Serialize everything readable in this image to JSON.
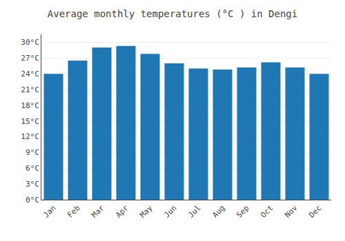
{
  "chart_data": {
    "type": "bar",
    "title": "Average monthly temperatures (°C ) in Dengi",
    "categories": [
      "Jan",
      "Feb",
      "Mar",
      "Apr",
      "May",
      "Jun",
      "Jul",
      "Aug",
      "Sep",
      "Oct",
      "Nov",
      "Dec"
    ],
    "values": [
      24.0,
      26.5,
      29.0,
      29.3,
      27.8,
      26.0,
      25.0,
      24.8,
      25.2,
      26.2,
      25.2,
      24.0
    ],
    "ylim": [
      0,
      31.5
    ],
    "yticks": [
      {
        "value": 0,
        "label": "0°C"
      },
      {
        "value": 3,
        "label": "3°C"
      },
      {
        "value": 6,
        "label": "6°C"
      },
      {
        "value": 9,
        "label": "9°C"
      },
      {
        "value": 12,
        "label": "12°C"
      },
      {
        "value": 15,
        "label": "15°C"
      },
      {
        "value": 18,
        "label": "18°C"
      },
      {
        "value": 21,
        "label": "21°C"
      },
      {
        "value": 24,
        "label": "24°C"
      },
      {
        "value": 27,
        "label": "27°C"
      },
      {
        "value": 30,
        "label": "30°C"
      }
    ],
    "grid": true
  }
}
